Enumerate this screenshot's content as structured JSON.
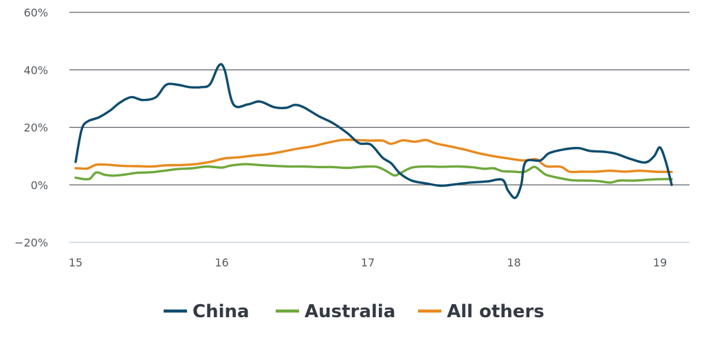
{
  "chart_data": {
    "type": "line",
    "x_tick_labels": [
      "15",
      "16",
      "17",
      "18",
      "19"
    ],
    "x_ticks": [
      15,
      16,
      17,
      18,
      19
    ],
    "xlim": [
      15,
      19.08
    ],
    "y_tick_labels": [
      "60%",
      "40%",
      "20%",
      "0%",
      "−20%"
    ],
    "y_ticks": [
      60,
      40,
      20,
      0,
      -20
    ],
    "ylim": [
      -20,
      60
    ],
    "grid": true,
    "legend_position": "bottom",
    "series": [
      {
        "name": "China",
        "color": "#0e4c6e",
        "points": [
          [
            15.0,
            8
          ],
          [
            15.04,
            19
          ],
          [
            15.08,
            22
          ],
          [
            15.16,
            23.5
          ],
          [
            15.24,
            26
          ],
          [
            15.3,
            28.5
          ],
          [
            15.38,
            30.5
          ],
          [
            15.46,
            29.5
          ],
          [
            15.55,
            30.5
          ],
          [
            15.62,
            34.8
          ],
          [
            15.7,
            34.8
          ],
          [
            15.78,
            34
          ],
          [
            15.86,
            34
          ],
          [
            15.92,
            35
          ],
          [
            15.98,
            41.5
          ],
          [
            16.02,
            40
          ],
          [
            16.08,
            28
          ],
          [
            16.18,
            28
          ],
          [
            16.26,
            29
          ],
          [
            16.36,
            27
          ],
          [
            16.44,
            26.8
          ],
          [
            16.5,
            27.8
          ],
          [
            16.56,
            27
          ],
          [
            16.66,
            24
          ],
          [
            16.76,
            21.5
          ],
          [
            16.86,
            18
          ],
          [
            16.94,
            14.5
          ],
          [
            17.02,
            14
          ],
          [
            17.1,
            9.5
          ],
          [
            17.16,
            7.5
          ],
          [
            17.22,
            4
          ],
          [
            17.3,
            1.5
          ],
          [
            17.4,
            0.5
          ],
          [
            17.5,
            -0.3
          ],
          [
            17.6,
            0.2
          ],
          [
            17.7,
            0.8
          ],
          [
            17.82,
            1.2
          ],
          [
            17.92,
            1.8
          ],
          [
            17.96,
            -2
          ],
          [
            18.01,
            -4.5
          ],
          [
            18.05,
            0
          ],
          [
            18.08,
            8
          ],
          [
            18.18,
            8.5
          ],
          [
            18.24,
            11
          ],
          [
            18.34,
            12.3
          ],
          [
            18.44,
            12.8
          ],
          [
            18.52,
            11.8
          ],
          [
            18.62,
            11.5
          ],
          [
            18.7,
            10.8
          ],
          [
            18.8,
            9
          ],
          [
            18.9,
            7.8
          ],
          [
            18.96,
            10
          ],
          [
            19.0,
            13
          ],
          [
            19.04,
            8
          ],
          [
            19.08,
            0
          ]
        ]
      },
      {
        "name": "Australia",
        "color": "#6ea83c",
        "points": [
          [
            15.0,
            2.5
          ],
          [
            15.06,
            2
          ],
          [
            15.1,
            2.2
          ],
          [
            15.14,
            4.3
          ],
          [
            15.2,
            3.5
          ],
          [
            15.26,
            3.2
          ],
          [
            15.34,
            3.6
          ],
          [
            15.42,
            4.2
          ],
          [
            15.52,
            4.4
          ],
          [
            15.62,
            5
          ],
          [
            15.7,
            5.5
          ],
          [
            15.8,
            5.8
          ],
          [
            15.9,
            6.4
          ],
          [
            16.0,
            6
          ],
          [
            16.06,
            6.7
          ],
          [
            16.16,
            7.2
          ],
          [
            16.26,
            6.9
          ],
          [
            16.36,
            6.6
          ],
          [
            16.46,
            6.4
          ],
          [
            16.56,
            6.4
          ],
          [
            16.66,
            6.2
          ],
          [
            16.76,
            6.2
          ],
          [
            16.86,
            5.9
          ],
          [
            16.96,
            6.3
          ],
          [
            17.06,
            6.3
          ],
          [
            17.12,
            5
          ],
          [
            17.18,
            3.3
          ],
          [
            17.22,
            4
          ],
          [
            17.3,
            6
          ],
          [
            17.4,
            6.4
          ],
          [
            17.5,
            6.3
          ],
          [
            17.62,
            6.4
          ],
          [
            17.72,
            6.1
          ],
          [
            17.8,
            5.6
          ],
          [
            17.86,
            5.8
          ],
          [
            17.92,
            4.8
          ],
          [
            18.0,
            4.6
          ],
          [
            18.06,
            4.4
          ],
          [
            18.1,
            5.2
          ],
          [
            18.14,
            6.3
          ],
          [
            18.18,
            5
          ],
          [
            18.22,
            3.5
          ],
          [
            18.3,
            2.5
          ],
          [
            18.4,
            1.6
          ],
          [
            18.5,
            1.5
          ],
          [
            18.58,
            1.3
          ],
          [
            18.66,
            0.8
          ],
          [
            18.72,
            1.5
          ],
          [
            18.82,
            1.5
          ],
          [
            18.92,
            1.8
          ],
          [
            19.0,
            2
          ],
          [
            19.08,
            2
          ]
        ]
      },
      {
        "name": "All others",
        "color": "#e8891e",
        "points": [
          [
            15.0,
            5.8
          ],
          [
            15.08,
            5.7
          ],
          [
            15.14,
            7
          ],
          [
            15.22,
            7
          ],
          [
            15.32,
            6.6
          ],
          [
            15.42,
            6.5
          ],
          [
            15.52,
            6.4
          ],
          [
            15.62,
            6.8
          ],
          [
            15.72,
            6.9
          ],
          [
            15.82,
            7.2
          ],
          [
            15.92,
            8
          ],
          [
            16.02,
            9.2
          ],
          [
            16.12,
            9.6
          ],
          [
            16.22,
            10.2
          ],
          [
            16.32,
            10.7
          ],
          [
            16.42,
            11.6
          ],
          [
            16.52,
            12.6
          ],
          [
            16.62,
            13.4
          ],
          [
            16.72,
            14.6
          ],
          [
            16.82,
            15.6
          ],
          [
            16.92,
            15.6
          ],
          [
            17.02,
            15.4
          ],
          [
            17.1,
            15.4
          ],
          [
            17.16,
            14.3
          ],
          [
            17.24,
            15.5
          ],
          [
            17.32,
            15
          ],
          [
            17.4,
            15.6
          ],
          [
            17.46,
            14.5
          ],
          [
            17.56,
            13.4
          ],
          [
            17.66,
            12.3
          ],
          [
            17.76,
            11
          ],
          [
            17.86,
            10
          ],
          [
            17.96,
            9.2
          ],
          [
            18.06,
            8.5
          ],
          [
            18.12,
            8.8
          ],
          [
            18.16,
            8.8
          ],
          [
            18.22,
            6.5
          ],
          [
            18.32,
            6.3
          ],
          [
            18.38,
            4.6
          ],
          [
            18.46,
            4.6
          ],
          [
            18.56,
            4.6
          ],
          [
            18.66,
            4.9
          ],
          [
            18.76,
            4.6
          ],
          [
            18.86,
            4.9
          ],
          [
            18.96,
            4.6
          ],
          [
            19.08,
            4.5
          ]
        ]
      }
    ]
  }
}
